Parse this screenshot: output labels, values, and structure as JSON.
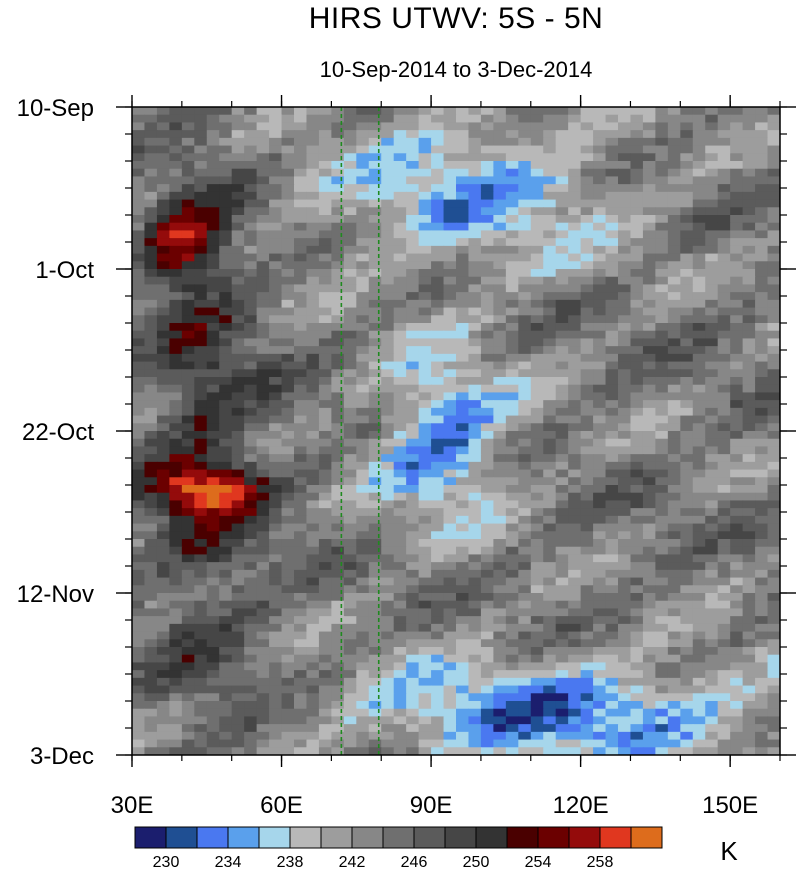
{
  "chart_data": {
    "type": "heatmap",
    "title": "HIRS UTWV: 5S - 5N",
    "subtitle": "10-Sep-2014 to 3-Dec-2014",
    "xlabel": "",
    "ylabel": "",
    "x_range": [
      30,
      160
    ],
    "x_ticks": [
      {
        "value": 30,
        "label": "30E"
      },
      {
        "value": 60,
        "label": "60E"
      },
      {
        "value": 90,
        "label": "90E"
      },
      {
        "value": 120,
        "label": "120E"
      },
      {
        "value": 150,
        "label": "150E"
      }
    ],
    "y_range": [
      "2014-09-10",
      "2014-12-03"
    ],
    "y_ticks": [
      {
        "value": "2014-09-10",
        "label": "10-Sep"
      },
      {
        "value": "2014-10-01",
        "label": "1-Oct"
      },
      {
        "value": "2014-10-22",
        "label": "22-Oct"
      },
      {
        "value": "2014-11-12",
        "label": "12-Nov"
      },
      {
        "value": "2014-12-03",
        "label": "3-Dec"
      }
    ],
    "y_direction": "time increases downward",
    "reference_lines_lon": [
      72,
      79.5
    ],
    "reference_line_color": "#1f8a1f",
    "colorbar": {
      "units": "K",
      "levels": [
        228,
        230,
        232,
        234,
        236,
        238,
        240,
        242,
        244,
        246,
        248,
        250,
        252,
        254,
        256,
        258,
        260
      ],
      "labels": [
        "230",
        "234",
        "238",
        "242",
        "246",
        "250",
        "254",
        "258"
      ],
      "colors": [
        "#1b1e6e",
        "#1f4f93",
        "#4a78f0",
        "#5aa0ec",
        "#a6d6eb",
        "#b8b8b8",
        "#9d9d9d",
        "#878787",
        "#6f6f6f",
        "#5b5b5b",
        "#464646",
        "#333333",
        "#4a0000",
        "#6b0000",
        "#940b0b",
        "#e0371f",
        "#dd6c1c"
      ]
    },
    "features": [
      {
        "desc": "dry (high Tb) band",
        "lon": [
          35,
          55
        ],
        "date": [
          "2014-09-10",
          "2014-12-03"
        ],
        "value": 250
      },
      {
        "desc": "warm maximum",
        "lon": [
          35,
          45
        ],
        "date": [
          "2014-09-24",
          "2014-10-01"
        ],
        "value": 256
      },
      {
        "desc": "warm maximum",
        "lon": [
          34,
          55
        ],
        "date": [
          "2014-10-27",
          "2014-10-31"
        ],
        "value": 256
      },
      {
        "desc": "moist (low Tb) region",
        "lon": [
          65,
          130
        ],
        "date": [
          "2014-09-10",
          "2014-10-01"
        ],
        "value": 236
      },
      {
        "desc": "moist (low Tb) region",
        "lon": [
          80,
          105
        ],
        "date": [
          "2014-10-12",
          "2014-11-02"
        ],
        "value": 233
      },
      {
        "desc": "moist (low Tb) region",
        "lon": [
          70,
          160
        ],
        "date": [
          "2014-11-21",
          "2014-12-03"
        ],
        "value": 233
      }
    ]
  }
}
